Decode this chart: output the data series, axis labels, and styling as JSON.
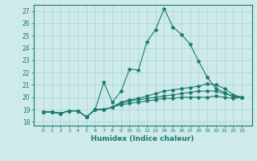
{
  "title": "",
  "xlabel": "Humidex (Indice chaleur)",
  "ylabel": "",
  "bg_color": "#ceeaea",
  "grid_color": "#aad4d4",
  "line_color": "#1a7a6e",
  "x_values": [
    0,
    1,
    2,
    3,
    4,
    5,
    6,
    7,
    8,
    9,
    10,
    11,
    12,
    13,
    14,
    15,
    16,
    17,
    18,
    19,
    20,
    21,
    22,
    23
  ],
  "series1": [
    18.8,
    18.8,
    18.7,
    18.9,
    18.9,
    18.4,
    19.0,
    21.2,
    19.6,
    20.5,
    22.3,
    22.2,
    24.5,
    25.5,
    27.2,
    25.7,
    25.1,
    24.3,
    22.9,
    21.6,
    20.7,
    20.4,
    20.0,
    20.0
  ],
  "series2": [
    18.8,
    18.8,
    18.7,
    18.9,
    18.9,
    18.4,
    19.0,
    19.0,
    19.2,
    19.6,
    19.8,
    19.9,
    20.1,
    20.3,
    20.5,
    20.6,
    20.7,
    20.8,
    20.9,
    21.1,
    21.0,
    20.7,
    20.2,
    20.0
  ],
  "series3": [
    18.8,
    18.8,
    18.7,
    18.9,
    18.9,
    18.4,
    19.0,
    19.0,
    19.2,
    19.5,
    19.7,
    19.8,
    19.9,
    20.0,
    20.1,
    20.2,
    20.3,
    20.4,
    20.5,
    20.5,
    20.5,
    20.3,
    20.1,
    20.0
  ],
  "series4": [
    18.8,
    18.8,
    18.7,
    18.9,
    18.9,
    18.4,
    19.0,
    19.0,
    19.2,
    19.4,
    19.5,
    19.6,
    19.7,
    19.8,
    19.9,
    19.9,
    20.0,
    20.0,
    20.0,
    20.0,
    20.1,
    20.0,
    19.9,
    20.0
  ],
  "ylim": [
    17.7,
    27.5
  ],
  "yticks": [
    18,
    19,
    20,
    21,
    22,
    23,
    24,
    25,
    26,
    27
  ],
  "xticks": [
    0,
    1,
    2,
    3,
    4,
    5,
    6,
    7,
    8,
    9,
    10,
    11,
    12,
    13,
    14,
    15,
    16,
    17,
    18,
    19,
    20,
    21,
    22,
    23
  ]
}
